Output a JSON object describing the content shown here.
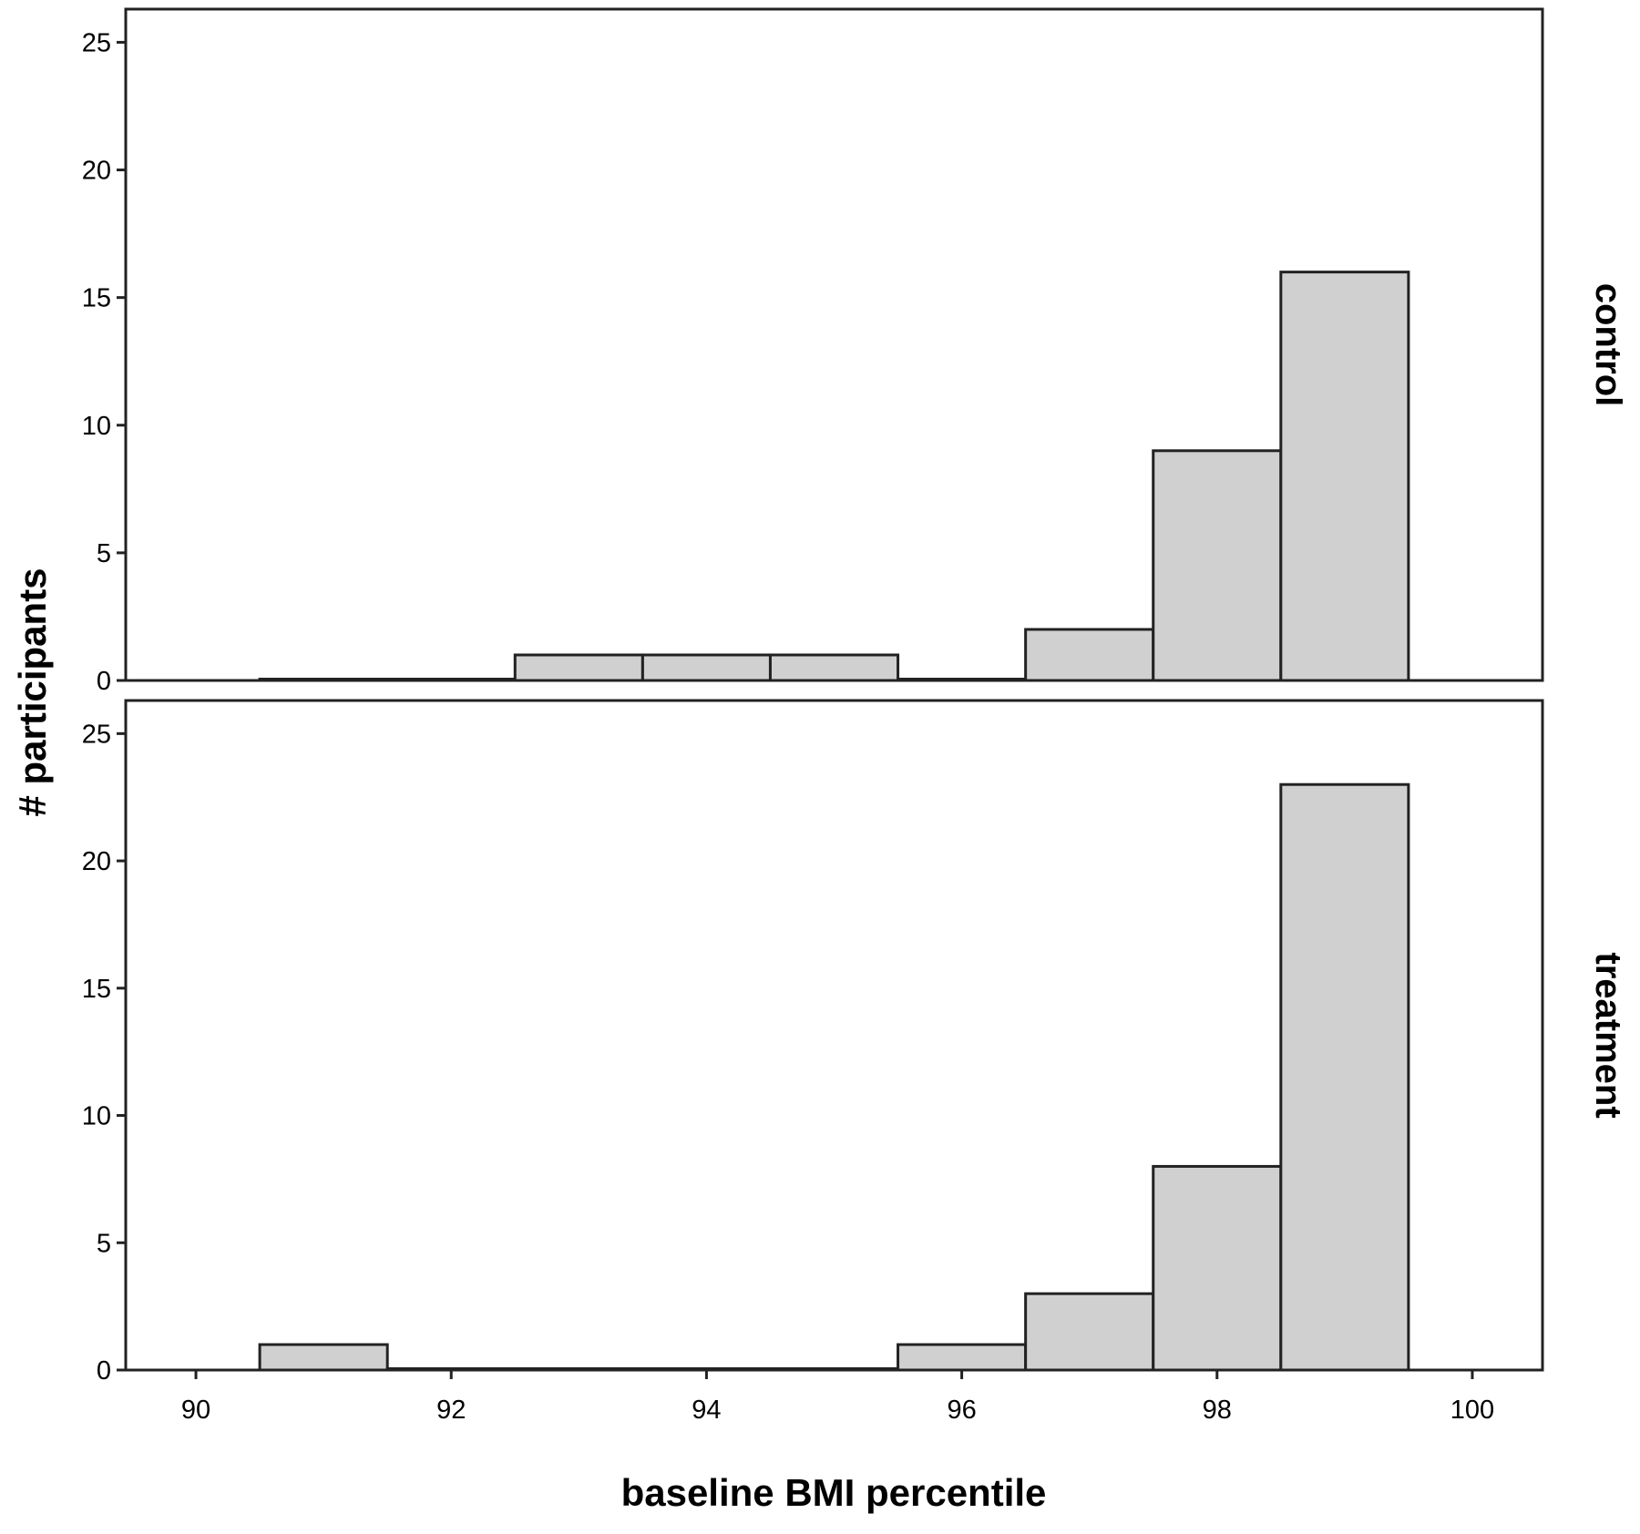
{
  "chart_data": {
    "type": "bar",
    "subtype": "histogram-faceted",
    "xlabel": "baseline BMI percentile",
    "ylabel": "# participants",
    "xlim": [
      89.45,
      100.55
    ],
    "ylim": [
      0,
      26.3
    ],
    "x_ticks": [
      90,
      92,
      94,
      96,
      98,
      100
    ],
    "y_ticks": [
      0,
      5,
      10,
      15,
      20,
      25
    ],
    "bin_width": 1,
    "grid": false,
    "legend": "none",
    "bar_color": "#d0d0d0",
    "bar_edge_color": "#222222",
    "panels": [
      {
        "label": "control",
        "bins": [
          {
            "x": 91,
            "count": 0
          },
          {
            "x": 92,
            "count": 0
          },
          {
            "x": 93,
            "count": 1
          },
          {
            "x": 94,
            "count": 1
          },
          {
            "x": 95,
            "count": 1
          },
          {
            "x": 96,
            "count": 0
          },
          {
            "x": 97,
            "count": 2
          },
          {
            "x": 98,
            "count": 9
          },
          {
            "x": 99,
            "count": 16
          }
        ]
      },
      {
        "label": "treatment",
        "bins": [
          {
            "x": 91,
            "count": 1
          },
          {
            "x": 92,
            "count": 0
          },
          {
            "x": 93,
            "count": 0
          },
          {
            "x": 94,
            "count": 0
          },
          {
            "x": 95,
            "count": 0
          },
          {
            "x": 96,
            "count": 1
          },
          {
            "x": 97,
            "count": 3
          },
          {
            "x": 98,
            "count": 8
          },
          {
            "x": 99,
            "count": 23
          }
        ]
      }
    ]
  }
}
